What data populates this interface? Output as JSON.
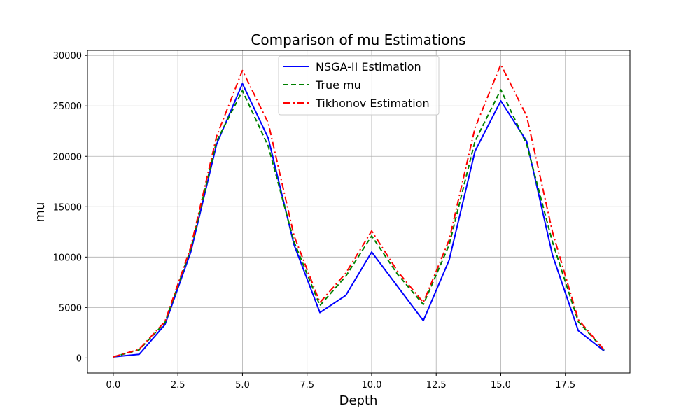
{
  "chart_data": {
    "type": "line",
    "title": "Comparison of mu Estimations",
    "xlabel": "Depth",
    "ylabel": "mu",
    "xlim": [
      -1.0,
      20.0
    ],
    "ylim": [
      -1500,
      30500
    ],
    "xticks": [
      0.0,
      2.5,
      5.0,
      7.5,
      10.0,
      12.5,
      15.0,
      17.5
    ],
    "xtick_labels": [
      "0.0",
      "2.5",
      "5.0",
      "7.5",
      "10.0",
      "12.5",
      "15.0",
      "17.5"
    ],
    "yticks": [
      0,
      5000,
      10000,
      15000,
      20000,
      25000,
      30000
    ],
    "ytick_labels": [
      "0",
      "5000",
      "10000",
      "15000",
      "20000",
      "25000",
      "30000"
    ],
    "grid": true,
    "legend_position": "top-center",
    "x": [
      0,
      1,
      2,
      3,
      4,
      5,
      6,
      7,
      8,
      9,
      10,
      11,
      12,
      13,
      14,
      15,
      16,
      17,
      18,
      19
    ],
    "series": [
      {
        "name": "NSGA-II Estimation",
        "color": "#0000ff",
        "style": "solid",
        "values": [
          100,
          350,
          3300,
          10500,
          21200,
          27200,
          21800,
          11200,
          4500,
          6200,
          10500,
          7100,
          3700,
          9700,
          20500,
          25500,
          21500,
          10200,
          2700,
          700
        ]
      },
      {
        "name": "True mu",
        "color": "#008000",
        "style": "dashed",
        "values": [
          100,
          800,
          3500,
          10800,
          21500,
          26500,
          21000,
          11500,
          5200,
          8100,
          12100,
          8300,
          5300,
          11200,
          21500,
          26600,
          21200,
          11500,
          3600,
          800
        ]
      },
      {
        "name": "Tikhonov Estimation",
        "color": "#ff0000",
        "style": "dashdot",
        "values": [
          100,
          850,
          3600,
          11000,
          22000,
          28500,
          23300,
          12100,
          5500,
          8400,
          12600,
          8600,
          5500,
          11700,
          22800,
          29100,
          24000,
          12500,
          3800,
          800
        ]
      }
    ]
  }
}
